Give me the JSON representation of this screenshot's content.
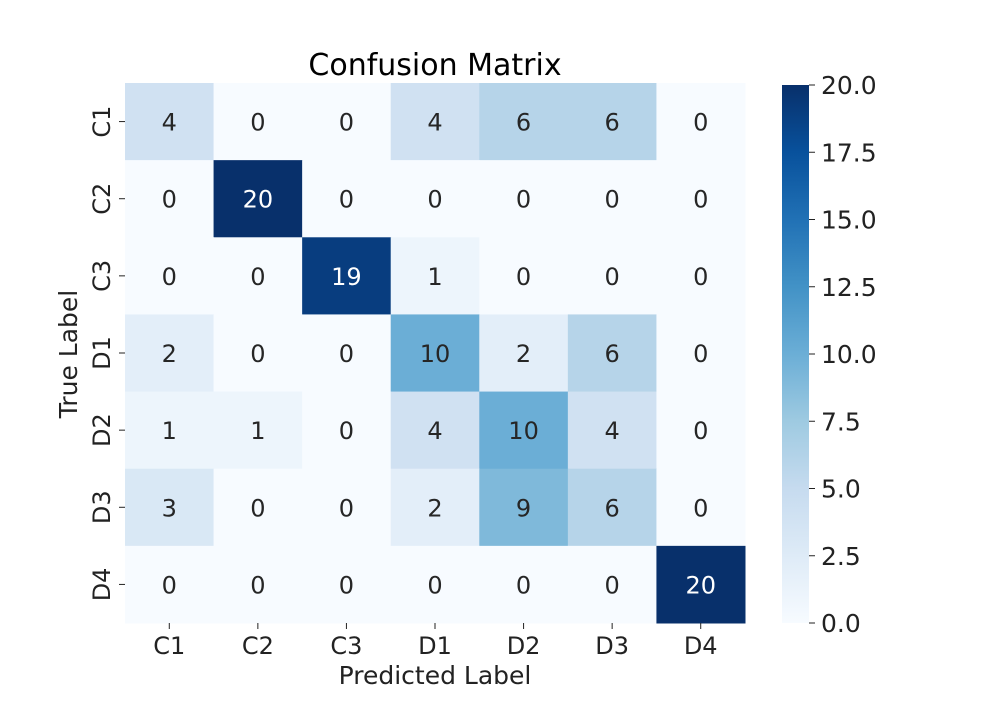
{
  "chart_data": {
    "type": "heatmap",
    "title": "Confusion Matrix",
    "xlabel": "Predicted Label",
    "ylabel": "True Label",
    "x_categories": [
      "C1",
      "C2",
      "C3",
      "D1",
      "D2",
      "D3",
      "D4"
    ],
    "y_categories": [
      "C1",
      "C2",
      "C3",
      "D1",
      "D2",
      "D3",
      "D4"
    ],
    "values": [
      [
        4,
        0,
        0,
        4,
        6,
        6,
        0
      ],
      [
        0,
        20,
        0,
        0,
        0,
        0,
        0
      ],
      [
        0,
        0,
        19,
        1,
        0,
        0,
        0
      ],
      [
        2,
        0,
        0,
        10,
        2,
        6,
        0
      ],
      [
        1,
        1,
        0,
        4,
        10,
        4,
        0
      ],
      [
        3,
        0,
        0,
        2,
        9,
        6,
        0
      ],
      [
        0,
        0,
        0,
        0,
        0,
        0,
        20
      ]
    ],
    "colormap": "Blues",
    "colorbar": {
      "range": [
        0,
        20
      ],
      "ticks": [
        "0.0",
        "2.5",
        "5.0",
        "7.5",
        "10.0",
        "12.5",
        "15.0",
        "17.5",
        "20.0"
      ]
    },
    "grid": false,
    "legend": "colorbar-right"
  }
}
